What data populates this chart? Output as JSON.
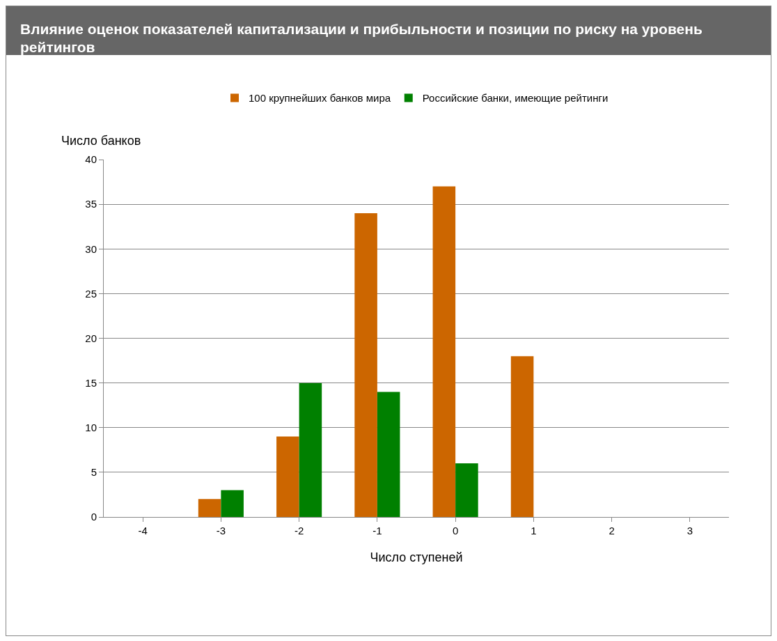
{
  "chart_data": {
    "type": "bar",
    "title": "Влияние оценок показателей капитализации и прибыльности  и позиции по риску на уровень рейтингов",
    "xlabel": "Число ступеней",
    "ylabel": "Число банков",
    "categories": [
      "-4",
      "-3",
      "-2",
      "-1",
      "0",
      "1",
      "2",
      "3"
    ],
    "series": [
      {
        "name": "100 крупнейших банков мира",
        "color": "#cc6600",
        "values": [
          0,
          2,
          9,
          34,
          37,
          18,
          0,
          0
        ]
      },
      {
        "name": "Российские банки, имеющие рейтинги",
        "color": "#008000",
        "values": [
          0,
          3,
          15,
          14,
          6,
          0,
          0,
          0
        ]
      }
    ],
    "ylim": [
      0,
      40
    ],
    "yticks": [
      0,
      5,
      10,
      15,
      20,
      25,
      30,
      35,
      40
    ],
    "grid": "y",
    "legend": "top"
  }
}
